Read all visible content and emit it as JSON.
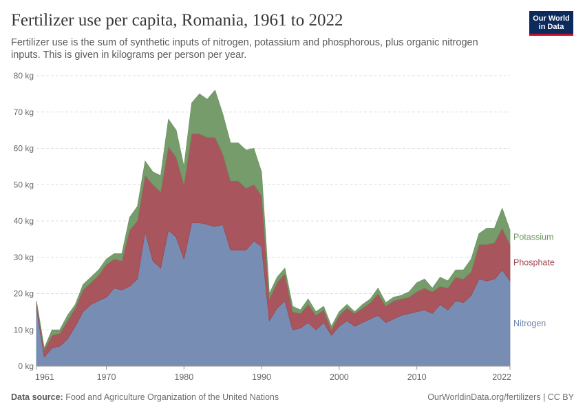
{
  "header": {
    "title": "Fertilizer use per capita, Romania, 1961 to 2022",
    "subtitle": "Fertilizer use is the sum of synthetic inputs of nitrogen, potassium and phosphorous, plus organic nitrogen inputs. This is given in kilograms per person per year.",
    "logo_line1": "Our World",
    "logo_line2": "in Data"
  },
  "footer": {
    "source_label": "Data source:",
    "source_text": "Food and Agriculture Organization of the United Nations",
    "url_text": "OurWorldinData.org/fertilizers | CC BY"
  },
  "colors": {
    "nitrogen": "#6c83ac",
    "phosphate": "#a2474f",
    "potassium": "#6b9460",
    "grid": "#dddddd",
    "tick_text": "#666666"
  },
  "chart_data": {
    "type": "area",
    "stacked": true,
    "x_ticks": [
      1961,
      1970,
      1980,
      1990,
      2000,
      2010,
      2022
    ],
    "y_ticks": [
      {
        "value": 0,
        "label": "0 kg"
      },
      {
        "value": 10,
        "label": "10 kg"
      },
      {
        "value": 20,
        "label": "20 kg"
      },
      {
        "value": 30,
        "label": "30 kg"
      },
      {
        "value": 40,
        "label": "40 kg"
      },
      {
        "value": 50,
        "label": "50 kg"
      },
      {
        "value": 60,
        "label": "60 kg"
      },
      {
        "value": 70,
        "label": "70 kg"
      },
      {
        "value": 80,
        "label": "80 kg"
      }
    ],
    "xlim": [
      1961,
      2022
    ],
    "ylim": [
      0,
      80
    ],
    "grid": true,
    "legend": "right",
    "x": [
      1961,
      1962,
      1963,
      1964,
      1965,
      1966,
      1967,
      1968,
      1969,
      1970,
      1971,
      1972,
      1973,
      1974,
      1975,
      1976,
      1977,
      1978,
      1979,
      1980,
      1981,
      1982,
      1983,
      1984,
      1985,
      1986,
      1987,
      1988,
      1989,
      1990,
      1991,
      1992,
      1993,
      1994,
      1995,
      1996,
      1997,
      1998,
      1999,
      2000,
      2001,
      2002,
      2003,
      2004,
      2005,
      2006,
      2007,
      2008,
      2009,
      2010,
      2011,
      2012,
      2013,
      2014,
      2015,
      2016,
      2017,
      2018,
      2019,
      2020,
      2021,
      2022
    ],
    "series": [
      {
        "name": "Nitrogen",
        "color_key": "nitrogen",
        "values": [
          16,
          2.5,
          5,
          5.5,
          7.5,
          11,
          15,
          17,
          18,
          19,
          21.5,
          21,
          22,
          24,
          37,
          29,
          27,
          37.5,
          35.5,
          29.5,
          39.5,
          39.5,
          39,
          38.5,
          39,
          32,
          32,
          32,
          34.5,
          33,
          12.5,
          16,
          18,
          10,
          10.5,
          12,
          10,
          12,
          8.5,
          11,
          12.5,
          11,
          12,
          13,
          14,
          12,
          13,
          14,
          14.5,
          15,
          15.5,
          14.5,
          17,
          15.5,
          18,
          17.5,
          19.5,
          24,
          23.5,
          24,
          26.5,
          23.5
        ]
      },
      {
        "name": "Phosphate",
        "color_key": "phosphate",
        "values": [
          1.5,
          2,
          3.5,
          3.5,
          5,
          5,
          6,
          6,
          7,
          9,
          8,
          8,
          15.5,
          16,
          15.5,
          21,
          21,
          23,
          22,
          20.5,
          24.5,
          24.5,
          24,
          24.5,
          19.5,
          19,
          19,
          17,
          15.5,
          14,
          6,
          7,
          7.5,
          5,
          4,
          5,
          4,
          3.5,
          1.5,
          3,
          3.5,
          3.5,
          4,
          4.5,
          6,
          4.5,
          5,
          4.5,
          4.5,
          5.5,
          6,
          6,
          5,
          6,
          6.5,
          6.5,
          6.5,
          9.5,
          10,
          10,
          11.5,
          10
        ]
      },
      {
        "name": "Potassium",
        "color_key": "potassium",
        "values": [
          0.5,
          0.5,
          1.5,
          1,
          1.5,
          1,
          1.5,
          1.5,
          1.5,
          1.5,
          1.5,
          2,
          3.5,
          4,
          4,
          3.5,
          4.5,
          7.5,
          7.5,
          5,
          8.5,
          11,
          10.5,
          13,
          11,
          10.5,
          10.5,
          10.5,
          10,
          6.5,
          1.5,
          1.5,
          1.5,
          1.5,
          1,
          1.5,
          1,
          1,
          1,
          1,
          1,
          0.5,
          1,
          1,
          1.5,
          1,
          1,
          1,
          1.5,
          2.5,
          2.5,
          1,
          2.5,
          2,
          2,
          2.5,
          3.5,
          3,
          4.5,
          4,
          5.5,
          4
        ]
      }
    ]
  }
}
